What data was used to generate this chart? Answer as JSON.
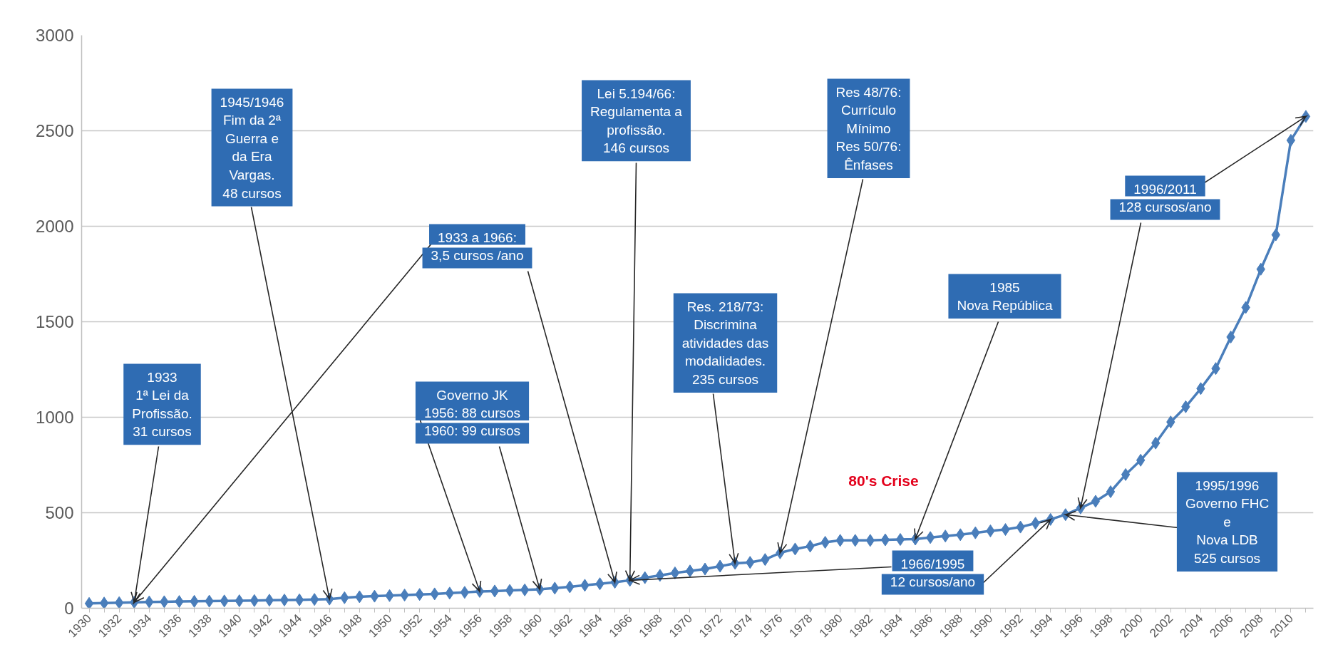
{
  "chart_data": {
    "type": "line",
    "color": "#4a7ebb",
    "marker": "diamond",
    "grid": "y",
    "x": [
      1930,
      1931,
      1932,
      1933,
      1934,
      1935,
      1936,
      1937,
      1938,
      1939,
      1940,
      1941,
      1942,
      1943,
      1944,
      1945,
      1946,
      1947,
      1948,
      1949,
      1950,
      1951,
      1952,
      1953,
      1954,
      1955,
      1956,
      1957,
      1958,
      1959,
      1960,
      1961,
      1962,
      1963,
      1964,
      1965,
      1966,
      1967,
      1968,
      1969,
      1970,
      1971,
      1972,
      1973,
      1974,
      1975,
      1976,
      1977,
      1978,
      1979,
      1980,
      1981,
      1982,
      1983,
      1984,
      1985,
      1986,
      1987,
      1988,
      1989,
      1990,
      1991,
      1992,
      1993,
      1994,
      1995,
      1996,
      1997,
      1998,
      1999,
      2000,
      2001,
      2002,
      2003,
      2004,
      2005,
      2006,
      2007,
      2008,
      2009,
      2010,
      2011
    ],
    "values": [
      25,
      27,
      29,
      31,
      33,
      34,
      35,
      36,
      37,
      38,
      39,
      40,
      42,
      43,
      44,
      46,
      48,
      55,
      60,
      63,
      66,
      69,
      72,
      75,
      79,
      83,
      88,
      90,
      93,
      96,
      99,
      105,
      112,
      120,
      128,
      136,
      146,
      160,
      172,
      185,
      195,
      205,
      220,
      235,
      240,
      255,
      290,
      310,
      325,
      345,
      355,
      355,
      355,
      358,
      360,
      362,
      370,
      378,
      385,
      395,
      405,
      412,
      425,
      445,
      465,
      490,
      525,
      560,
      610,
      700,
      775,
      865,
      975,
      1055,
      1150,
      1255,
      1420,
      1575,
      1775,
      1955,
      2450,
      2575
    ],
    "xlim": [
      1929.5,
      2011.5
    ],
    "ylim": [
      0,
      3000
    ],
    "xticks": [
      1930,
      {
        "value": 1931,
        "label": null
      },
      1932,
      {
        "value": 1933,
        "label": null
      },
      1934,
      {
        "value": 1935,
        "label": null
      },
      1936,
      {
        "value": 1937,
        "label": null
      },
      1938,
      {
        "value": 1939,
        "label": null
      },
      1940,
      {
        "value": 1941,
        "label": null
      },
      1942,
      {
        "value": 1943,
        "label": null
      },
      1944,
      {
        "value": 1945,
        "label": null
      },
      1946,
      {
        "value": 1947,
        "label": null
      },
      1948,
      {
        "value": 1949,
        "label": null
      },
      1950,
      {
        "value": 1951,
        "label": null
      },
      1952,
      {
        "value": 1953,
        "label": null
      },
      1954,
      {
        "value": 1955,
        "label": null
      },
      1956,
      {
        "value": 1957,
        "label": null
      },
      1958,
      {
        "value": 1959,
        "label": null
      },
      1960,
      {
        "value": 1961,
        "label": null
      },
      1962,
      {
        "value": 1963,
        "label": null
      },
      1964,
      {
        "value": 1965,
        "label": null
      },
      1966,
      {
        "value": 1967,
        "label": null
      },
      1968,
      {
        "value": 1969,
        "label": null
      },
      1970,
      {
        "value": 1971,
        "label": null
      },
      1972,
      {
        "value": 1973,
        "label": null
      },
      1974,
      {
        "value": 1975,
        "label": null
      },
      1976,
      {
        "value": 1977,
        "label": null
      },
      1978,
      {
        "value": 1979,
        "label": null
      },
      1980,
      {
        "value": 1981,
        "label": null
      },
      1982,
      {
        "value": 1983,
        "label": null
      },
      1984,
      {
        "value": 1985,
        "label": null
      },
      1986,
      {
        "value": 1987,
        "label": null
      },
      1988,
      {
        "value": 1989,
        "label": null
      },
      1990,
      {
        "value": 1991,
        "label": null
      },
      1992,
      {
        "value": 1993,
        "label": null
      },
      1994,
      {
        "value": 1995,
        "label": null
      },
      1996,
      {
        "value": 1997,
        "label": null
      },
      1998,
      {
        "value": 1999,
        "label": null
      },
      2000,
      {
        "value": 2001,
        "label": null
      },
      2002,
      {
        "value": 2003,
        "label": null
      },
      2004,
      {
        "value": 2005,
        "label": null
      },
      2006,
      {
        "value": 2007,
        "label": null
      },
      2008,
      {
        "value": 2009,
        "label": null
      },
      2010,
      {
        "value": 2011,
        "label": null
      }
    ],
    "yticks": [
      0,
      500,
      1000,
      1500,
      2000,
      2500,
      3000
    ],
    "annotations": [
      {
        "text": "1933\n1ª Lei da\nProfissão.\n31 cursos",
        "x": 1933,
        "y": 31
      },
      {
        "text": "1945/1946\nFim da 2ª\nGuerra e\nda Era\nVargas.\n48 cursos",
        "x": 1946,
        "y": 48
      },
      {
        "text": "1933 a 1966:",
        "x": 1933,
        "y": 31
      },
      {
        "text": "3,5 cursos /ano",
        "x": 1965,
        "y": 136
      },
      {
        "text": "Governo JK\n1956: 88 cursos",
        "x": 1956,
        "y": 88
      },
      {
        "text": "1960: 99 cursos",
        "x": 1960,
        "y": 99
      },
      {
        "text": "Lei 5.194/66:\nRegulamenta a\nprofissão.\n146 cursos",
        "x": 1966,
        "y": 146
      },
      {
        "text": "Res. 218/73:\nDiscrimina\natividades das\nmodalidades.\n235 cursos",
        "x": 1973,
        "y": 235
      },
      {
        "text": "Res 48/76:\nCurrículo\nMínimo\nRes 50/76:\nÊnfases",
        "x": 1976,
        "y": 290
      },
      "80's Crise",
      {
        "text": "1985\nNova República",
        "x": 1985,
        "y": 362
      },
      {
        "text": "1966/1995",
        "x": 1966,
        "y": 146
      },
      {
        "text": "12 cursos/ano",
        "x": 1994,
        "y": 465
      },
      {
        "text": "1996/2011",
        "x": 2011,
        "y": 2575
      },
      {
        "text": "128 cursos/ano",
        "x": 1996,
        "y": 525
      },
      {
        "text": "1995/1996\nGoverno FHC\ne\nNova LDB\n525 cursos",
        "x": 1995,
        "y": 490
      }
    ]
  }
}
